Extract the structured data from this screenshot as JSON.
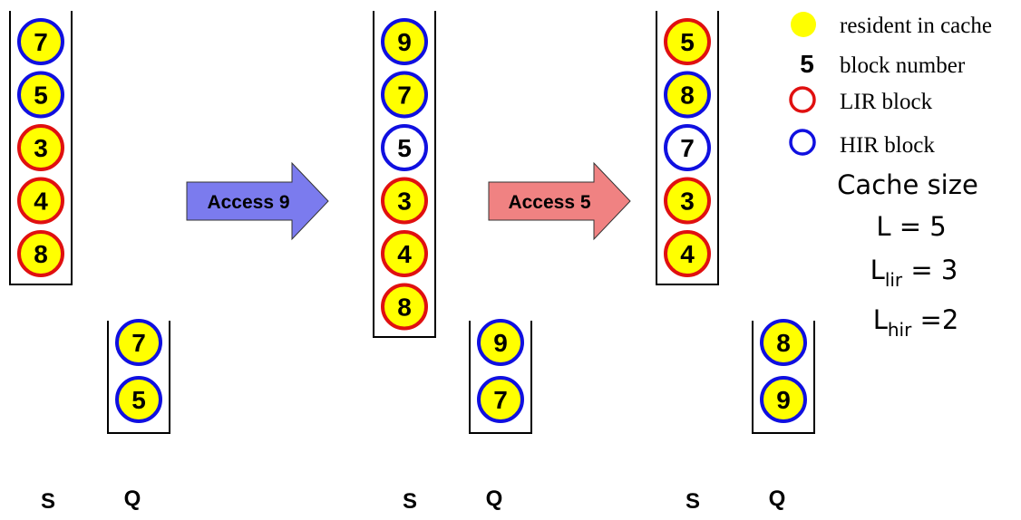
{
  "colors": {
    "resident_fill": "#ffff00",
    "lir_ring": "#e01010",
    "hir_ring": "#1010e0",
    "arrow_access9": "#7b7bee",
    "arrow_access5": "#f08282",
    "stack_border": "#000000"
  },
  "stages": [
    {
      "s_label": "S",
      "q_label": "Q",
      "S": [
        {
          "num": "7",
          "type": "HIR",
          "resident": true
        },
        {
          "num": "5",
          "type": "HIR",
          "resident": true
        },
        {
          "num": "3",
          "type": "LIR",
          "resident": true
        },
        {
          "num": "4",
          "type": "LIR",
          "resident": true
        },
        {
          "num": "8",
          "type": "LIR",
          "resident": true
        }
      ],
      "Q": [
        {
          "num": "7",
          "type": "HIR",
          "resident": true
        },
        {
          "num": "5",
          "type": "HIR",
          "resident": true
        }
      ]
    },
    {
      "s_label": "S",
      "q_label": "Q",
      "S": [
        {
          "num": "9",
          "type": "HIR",
          "resident": true
        },
        {
          "num": "7",
          "type": "HIR",
          "resident": true
        },
        {
          "num": "5",
          "type": "HIR",
          "resident": false
        },
        {
          "num": "3",
          "type": "LIR",
          "resident": true
        },
        {
          "num": "4",
          "type": "LIR",
          "resident": true
        },
        {
          "num": "8",
          "type": "LIR",
          "resident": true
        }
      ],
      "Q": [
        {
          "num": "9",
          "type": "HIR",
          "resident": true
        },
        {
          "num": "7",
          "type": "HIR",
          "resident": true
        }
      ]
    },
    {
      "s_label": "S",
      "q_label": "Q",
      "S": [
        {
          "num": "5",
          "type": "LIR",
          "resident": true
        },
        {
          "num": "8",
          "type": "HIR",
          "resident": true
        },
        {
          "num": "7",
          "type": "HIR",
          "resident": false
        },
        {
          "num": "3",
          "type": "LIR",
          "resident": true
        },
        {
          "num": "4",
          "type": "LIR",
          "resident": true
        }
      ],
      "Q": [
        {
          "num": "8",
          "type": "HIR",
          "resident": true
        },
        {
          "num": "9",
          "type": "HIR",
          "resident": true
        }
      ]
    }
  ],
  "arrows": [
    {
      "label": "Access 9"
    },
    {
      "label": "Access 5"
    }
  ],
  "legend": {
    "resident": "resident in cache",
    "number_sample": "5",
    "number_text": "block number",
    "lir": "LIR block",
    "hir": "HIR block"
  },
  "cache": {
    "title": "Cache size",
    "L_text": "L = 5",
    "Llir_base": "L",
    "Llir_sub": "lir",
    "Llir_value": " = 3",
    "Lhir_base": "L",
    "Lhir_sub": "hir",
    "Lhir_value": " =2"
  }
}
